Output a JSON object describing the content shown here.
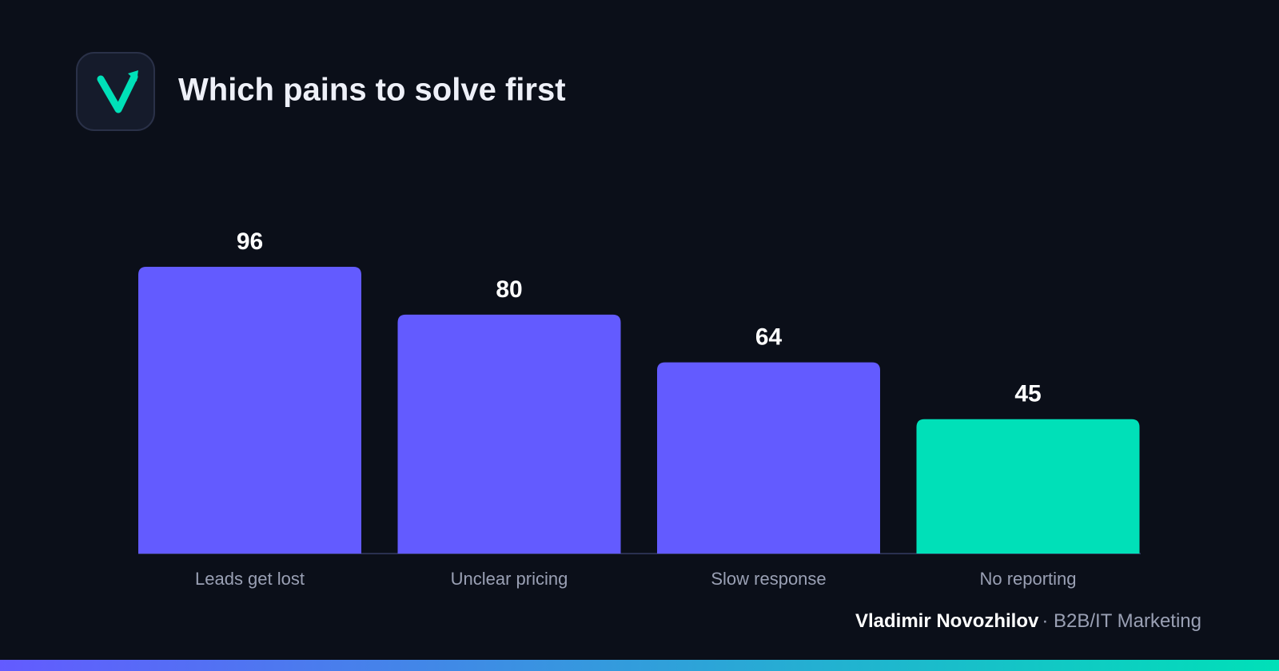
{
  "chart_data": {
    "type": "bar",
    "title": "Which pains to solve first",
    "categories": [
      "Leads get lost",
      "Unclear pricing",
      "Slow response",
      "No reporting"
    ],
    "values": [
      96,
      80,
      64,
      45
    ],
    "colors": [
      "#635bff",
      "#635bff",
      "#635bff",
      "#00e0b8"
    ],
    "author": "Vladimir Novozhilov",
    "author_role": "· B2B/IT Marketing"
  }
}
